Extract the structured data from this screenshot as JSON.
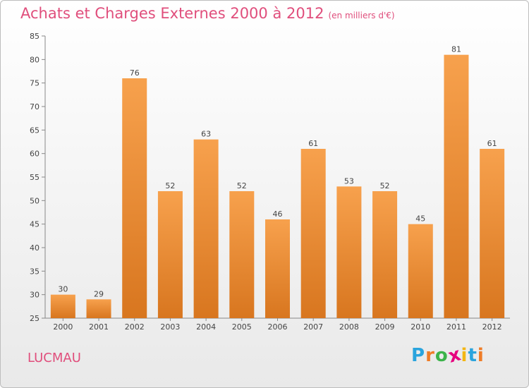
{
  "header": {
    "title": "Achats et Charges Externes 2000 à 2012",
    "subtitle": "(en milliers d'€)"
  },
  "footer": {
    "commune": "LUCMAU",
    "logo_text": "Proxiti",
    "logo_letters": [
      {
        "char": "P",
        "color": "#2aa4dd"
      },
      {
        "char": "r",
        "color": "#ef7c27"
      },
      {
        "char": "o",
        "color": "#3cb34a"
      },
      {
        "char": "x",
        "color": "#e6007e"
      },
      {
        "char": "i",
        "color": "#f3b614"
      },
      {
        "char": "t",
        "color": "#2aa4dd"
      },
      {
        "char": "i",
        "color": "#ef7c27"
      }
    ]
  },
  "chart_data": {
    "type": "bar",
    "categories": [
      "2000",
      "2001",
      "2002",
      "2003",
      "2004",
      "2005",
      "2006",
      "2007",
      "2008",
      "2009",
      "2010",
      "2011",
      "2012"
    ],
    "values": [
      30,
      29,
      76,
      52,
      63,
      52,
      46,
      61,
      53,
      52,
      45,
      81,
      61
    ],
    "ylim": [
      25,
      85
    ],
    "yticks": [
      25,
      30,
      35,
      40,
      45,
      50,
      55,
      60,
      65,
      70,
      75,
      80,
      85
    ],
    "grid": false,
    "bar_color_top": "#f7a14d",
    "bar_color_bottom": "#d8761f"
  }
}
